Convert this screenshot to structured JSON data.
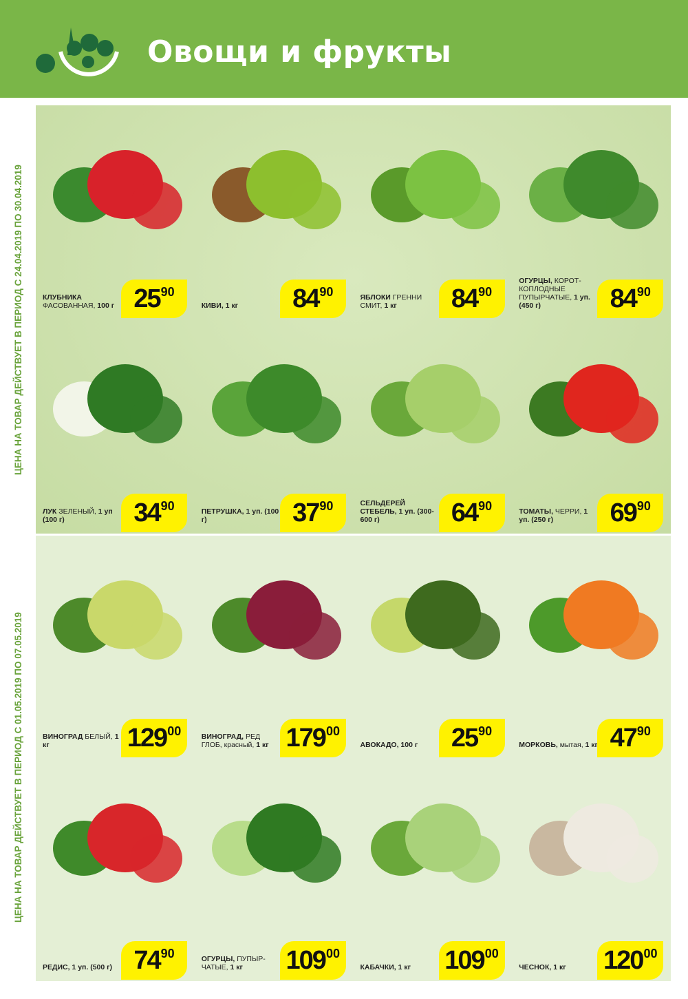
{
  "header": {
    "title": "Овощи и фрукты",
    "logo_icon": "vegetable-bowl-icon",
    "bg_color": "#7ab648"
  },
  "sections": [
    {
      "validity": "ЦЕНА НА ТОВАР ДЕЙСТВУЕТ В ПЕРИОД С 24.04.2019 ПО 30.04.2019",
      "products": [
        {
          "bold": "КЛУБНИКА",
          "regular": " ФАСОВАННАЯ, ",
          "bold2": "100 г",
          "int": "25",
          "dec": "90",
          "color": "#d8222a",
          "accent": "#3b8a2e"
        },
        {
          "bold": "КИВИ, 1 кг",
          "regular": "",
          "bold2": "",
          "int": "84",
          "dec": "90",
          "color": "#8dbf2e",
          "accent": "#8a5a2b"
        },
        {
          "bold": "ЯБЛОКИ",
          "regular": " ГРЕННИ СМИТ, ",
          "bold2": "1 кг",
          "int": "84",
          "dec": "90",
          "color": "#7cc242",
          "accent": "#5a9a2a"
        },
        {
          "bold": "ОГУРЦЫ,",
          "regular": " КОРОТ-КОПЛОДНЫЕ ПУПЫРЧАТЫЕ, ",
          "bold2": "1 уп. (450 г)",
          "int": "84",
          "dec": "90",
          "color": "#3f8a2c",
          "accent": "#6bb046"
        },
        {
          "bold": "ЛУК",
          "regular": " ЗЕЛЕНЫЙ, ",
          "bold2": "1 уп (100 г)",
          "int": "34",
          "dec": "90",
          "color": "#2f7a24",
          "accent": "#f2f5e8"
        },
        {
          "bold": "ПЕТРУШКА, 1 уп. (100 г)",
          "regular": "",
          "bold2": "",
          "int": "37",
          "dec": "90",
          "color": "#3d8a2a",
          "accent": "#5aa43a"
        },
        {
          "bold": "СЕЛЬДЕРЕЙ СТЕБЕЛЬ, 1 уп. (300-600 г)",
          "regular": "",
          "bold2": "",
          "int": "64",
          "dec": "90",
          "color": "#a6cf6a",
          "accent": "#6aa83a"
        },
        {
          "bold": "ТОМАТЫ,",
          "regular": " ЧЕРРИ, ",
          "bold2": "1 уп. (250 г)",
          "int": "69",
          "dec": "90",
          "color": "#e0261e",
          "accent": "#3c7a22"
        }
      ]
    },
    {
      "validity": "ЦЕНА НА ТОВАР ДЕЙСТВУЕТ В ПЕРИОД С 01.05.2019 ПО 07.05.2019",
      "products": [
        {
          "bold": "ВИНОГРАД",
          "regular": " БЕЛЫЙ, ",
          "bold2": "1 кг",
          "int": "129",
          "dec": "00",
          "color": "#c9d86a",
          "accent": "#4d8a2a"
        },
        {
          "bold": "ВИНОГРАД,",
          "regular": " РЕД ГЛОБ, красный, ",
          "bold2": "1 кг",
          "int": "179",
          "dec": "00",
          "color": "#8a1d3a",
          "accent": "#4d8a2a"
        },
        {
          "bold": "АВОКАДО, 100 г",
          "regular": "",
          "bold2": "",
          "int": "25",
          "dec": "90",
          "color": "#3e6a1e",
          "accent": "#c5d86a"
        },
        {
          "bold": "МОРКОВЬ,",
          "regular": " мытая, ",
          "bold2": "1 кг",
          "int": "47",
          "dec": "90",
          "color": "#f07a22",
          "accent": "#4d9a2a"
        },
        {
          "bold": "РЕДИС, 1 уп. (500 г)",
          "regular": "",
          "bold2": "",
          "int": "74",
          "dec": "90",
          "color": "#d8262a",
          "accent": "#3f8a2a"
        },
        {
          "bold": "ОГУРЦЫ,",
          "regular": " ПУПЫР-ЧАТЫЕ, ",
          "bold2": "1 кг",
          "int": "109",
          "dec": "00",
          "color": "#2f7a22",
          "accent": "#b8dc8a"
        },
        {
          "bold": "КАБАЧКИ, 1 кг",
          "regular": "",
          "bold2": "",
          "int": "109",
          "dec": "00",
          "color": "#a9d27a",
          "accent": "#6aa83a"
        },
        {
          "bold": "ЧЕСНОК, 1 кг",
          "regular": "",
          "bold2": "",
          "int": "120",
          "dec": "00",
          "color": "#eeeae0",
          "accent": "#c9b8a0"
        }
      ]
    }
  ],
  "colors": {
    "price_badge": "#fff200",
    "validity_text": "#6aa33c"
  }
}
